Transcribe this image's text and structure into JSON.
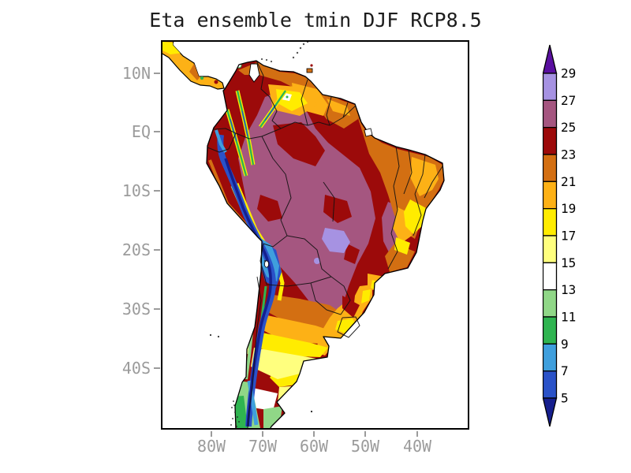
{
  "title": "Eta ensemble tmin DJF RCP8.5",
  "axes": {
    "y_ticks": [
      "10N",
      "EQ",
      "10S",
      "20S",
      "30S",
      "40S"
    ],
    "x_ticks": [
      "80W",
      "70W",
      "60W",
      "50W",
      "40W"
    ]
  },
  "palette": {
    "c0": "#161f8e",
    "c1": "#2a52c8",
    "c2": "#3f9fdd",
    "c3": "#2fb450",
    "c4": "#90d787",
    "c5": "#ffffff",
    "c6": "#ffff7e",
    "c7": "#ffec00",
    "c8": "#fdb116",
    "c9": "#d36f12",
    "c10": "#9c0a0a",
    "c11": "#a55680",
    "c12": "#a692e2",
    "c13": "#5a0fa0"
  },
  "colorbar": {
    "tick_values": [
      "29",
      "27",
      "25",
      "23",
      "21",
      "19",
      "17",
      "15",
      "13",
      "11",
      "9",
      "7",
      "5"
    ],
    "segment_colors_top_to_bottom": [
      "#a692e2",
      "#a55680",
      "#9c0a0a",
      "#d36f12",
      "#fdb116",
      "#ffec00",
      "#ffff7e",
      "#ffffff",
      "#90d787",
      "#2fb450",
      "#3f9fdd",
      "#2a52c8"
    ],
    "above_max_color": "#5a0fa0",
    "below_min_color": "#161f8e"
  },
  "chart_data": {
    "type": "heatmap",
    "subtype": "filled-contour geographic map of South America",
    "title": "Eta ensemble tmin DJF RCP8.5",
    "x_tick_labels": [
      "80W",
      "70W",
      "60W",
      "50W",
      "40W"
    ],
    "y_tick_labels": [
      "10N",
      "EQ",
      "10S",
      "20S",
      "30S",
      "40S"
    ],
    "approx_map_extent": {
      "west": "90W",
      "east": "30W",
      "north": "16N",
      "south": "50S"
    },
    "colorbar_levels": [
      5,
      7,
      9,
      11,
      13,
      15,
      17,
      19,
      21,
      23,
      25,
      27,
      29
    ],
    "colorbar_colors_bottom_to_top": [
      "#161f8e",
      "#2a52c8",
      "#3f9fdd",
      "#2fb450",
      "#90d787",
      "#ffffff",
      "#ffff7e",
      "#ffec00",
      "#fdb116",
      "#d36f12",
      "#9c0a0a",
      "#a55680",
      "#a692e2",
      "#5a0fa0"
    ],
    "legend_position": "right vertical colorbar with pointed over/under arrows",
    "grid": false,
    "regions_read_from_map": [
      {
        "area": "Central/western Amazon basin interior",
        "value_range": "25-27"
      },
      {
        "area": "Pocket near Bolivia-Paraguay-Brazil border (Chaco/Pantanal)",
        "value_range": "27-29"
      },
      {
        "area": "Most tropical lowlands, Venezuela llanos, north Argentina Chaco, west Bahia",
        "value_range": "23-25"
      },
      {
        "area": "NE Brazil coast, Guianas coast, Venezuela coast, SE Brazil coast",
        "value_range": "21-23"
      },
      {
        "area": "Interior east Brazil (Bahia/Minas), south Brazil, Uruguay",
        "value_range": "17-21"
      },
      {
        "area": "Guiana highlands",
        "value_range": "13-17"
      },
      {
        "area": "Central Argentina pampas",
        "value_range": "15-19"
      },
      {
        "area": "Northern Patagonia steppe",
        "value_range": "13-17"
      },
      {
        "area": "Southern Patagonia and south Chile",
        "value_range": "7-13"
      },
      {
        "area": "Andes cordillera Ecuador-Peru-Bolivia-Chile (dark core below 5)",
        "value_range": "<5-9"
      },
      {
        "area": "Peruvian coastal strip",
        "value_range": "17-21"
      },
      {
        "area": "Central America strip in top-left corner",
        "value_range": "17-23"
      }
    ]
  }
}
